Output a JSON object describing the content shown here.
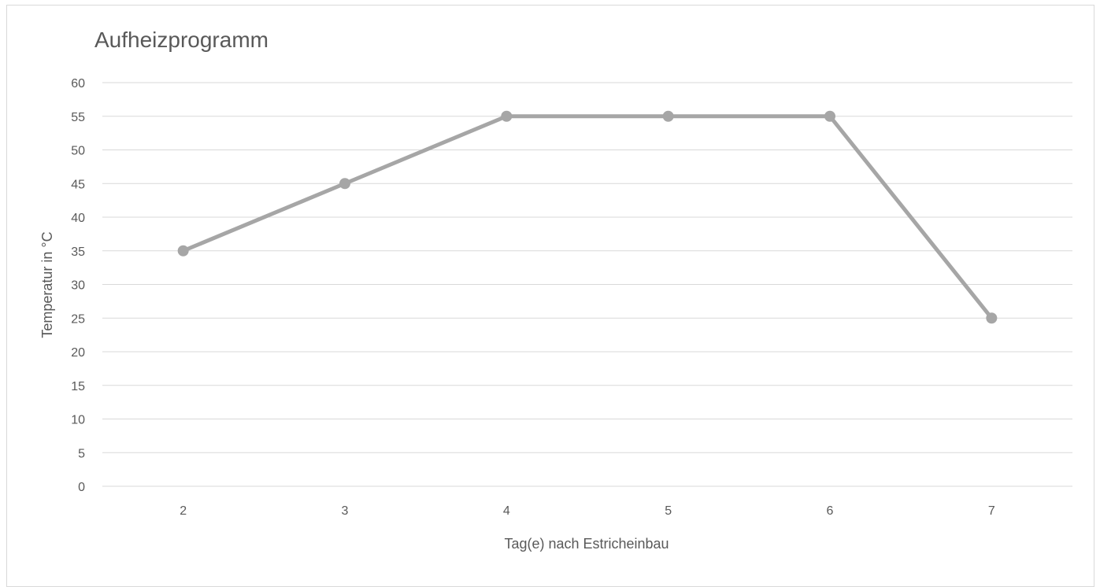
{
  "chart_data": {
    "type": "line",
    "title": "Aufheizprogramm",
    "xlabel": "Tag(e) nach Estricheinbau",
    "ylabel": "Temperatur in °C",
    "categories": [
      "2",
      "3",
      "4",
      "5",
      "6",
      "7"
    ],
    "series": [
      {
        "values": [
          35,
          45,
          55,
          55,
          55,
          25
        ]
      }
    ],
    "ylim": [
      0,
      60
    ],
    "yticks": [
      "0",
      "5",
      "10",
      "15",
      "20",
      "25",
      "30",
      "35",
      "40",
      "45",
      "50",
      "55",
      "60"
    ],
    "grid": true,
    "legend": "none",
    "colors": {
      "line": "#a6a6a6",
      "marker": "#a6a6a6",
      "grid": "#d9d9d9",
      "text": "#595959"
    }
  }
}
